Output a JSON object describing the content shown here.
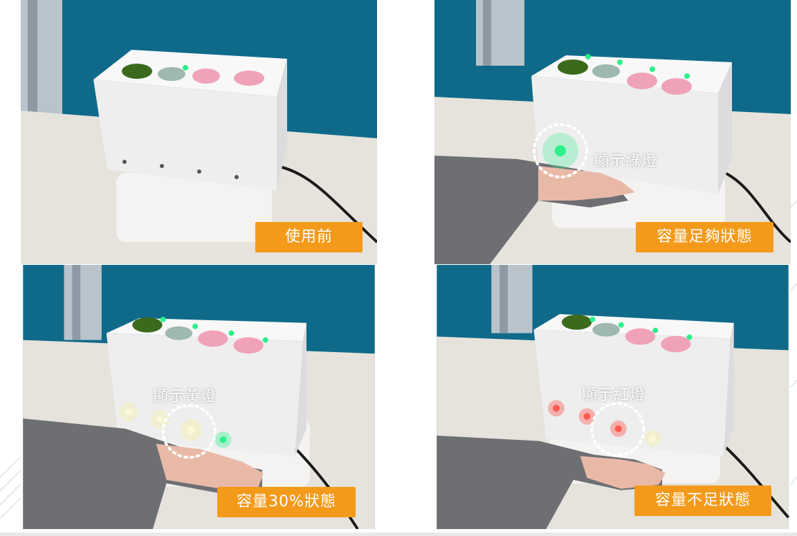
{
  "panels": [
    {
      "id": "before",
      "caption": "使用前",
      "annotation": "",
      "light_state": "off"
    },
    {
      "id": "sufficient",
      "caption": "容量足夠狀態",
      "annotation": "顯示綠燈",
      "light_state": "green"
    },
    {
      "id": "thirty",
      "caption": "容量30%狀態",
      "annotation": "顯示黃燈",
      "light_state": "yellow"
    },
    {
      "id": "insufficient",
      "caption": "容量不足狀態",
      "annotation": "顯示紅燈",
      "light_state": "red"
    }
  ],
  "colors": {
    "caption_bg": "#f39a1b",
    "wall": "#0f6a8a",
    "led_green": "#2cf08a",
    "led_yellow": "#f4f0a0",
    "led_red": "#ff3b30"
  }
}
